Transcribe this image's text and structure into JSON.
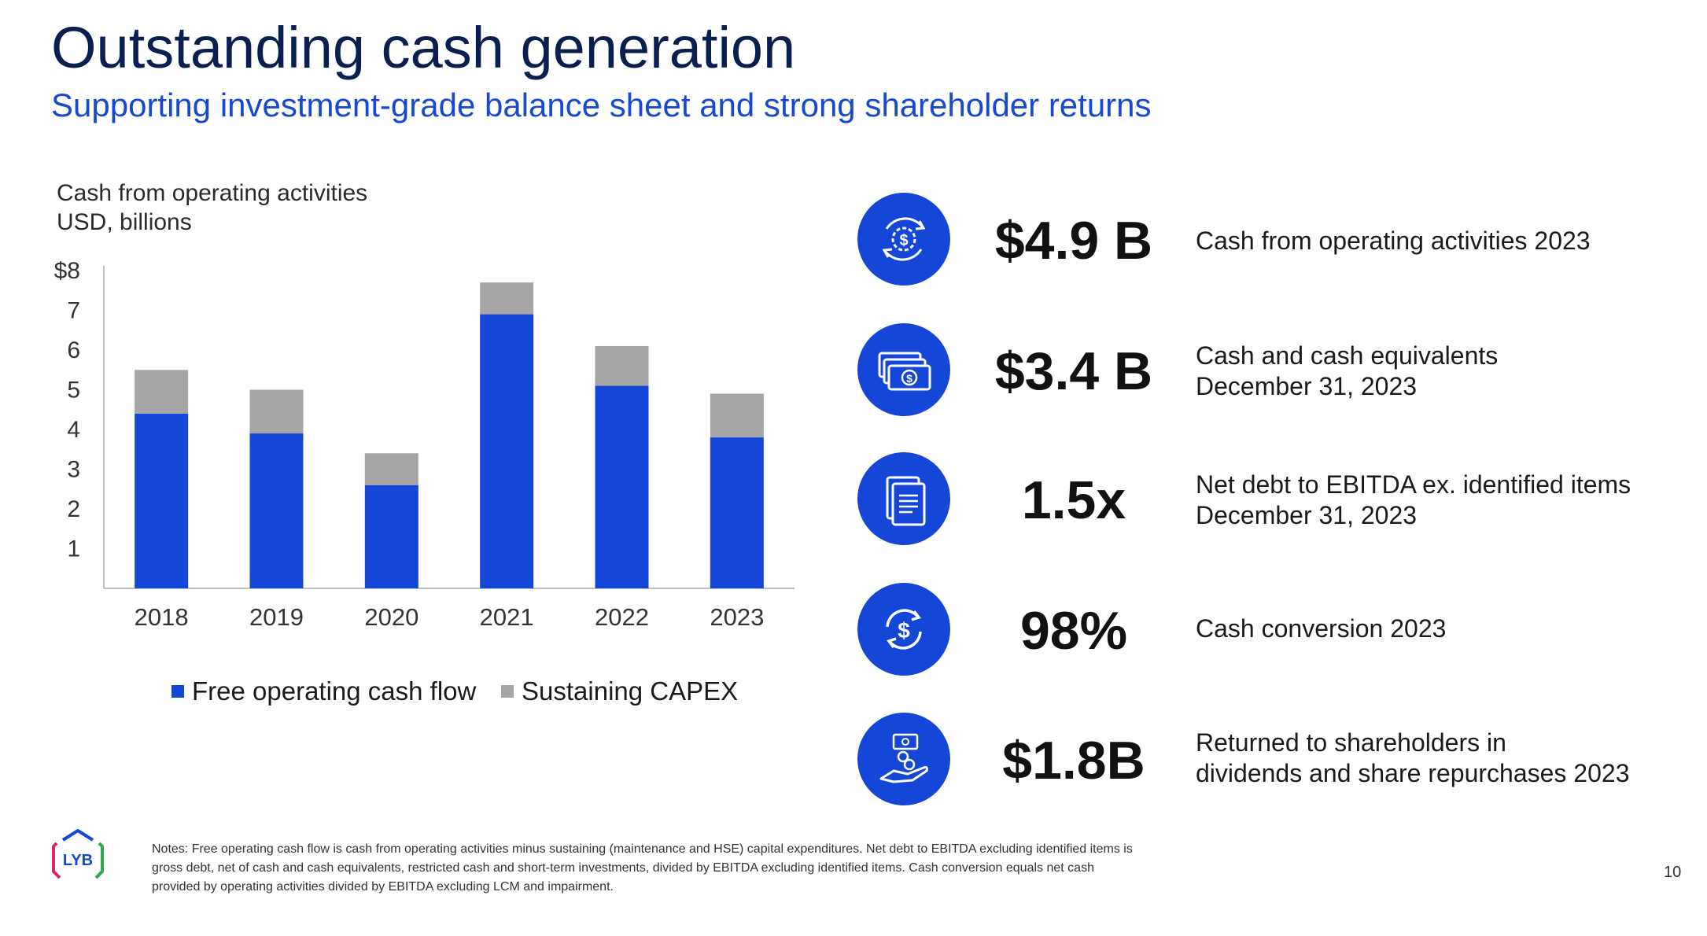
{
  "title": "Outstanding cash generation",
  "subtitle": "Supporting investment-grade balance sheet and strong shareholder returns",
  "chart_data": {
    "type": "bar",
    "stacked": true,
    "title_line1": "Cash from operating activities",
    "title_line2": "USD, billions",
    "categories": [
      "2018",
      "2019",
      "2020",
      "2021",
      "2022",
      "2023"
    ],
    "series": [
      {
        "name": "Free operating cash flow",
        "color": "#1447d8",
        "values": [
          4.4,
          3.9,
          2.6,
          6.9,
          5.1,
          3.8
        ]
      },
      {
        "name": "Sustaining CAPEX",
        "color": "#a6a6a6",
        "values": [
          1.1,
          1.1,
          0.8,
          0.8,
          1.0,
          1.1
        ]
      }
    ],
    "ylim": [
      0,
      8
    ],
    "y_tick_values": [
      1,
      2,
      3,
      4,
      5,
      6,
      7,
      8
    ],
    "y_tick_labels": [
      "1",
      "2",
      "3",
      "4",
      "5",
      "6",
      "7",
      "$8"
    ],
    "legend_position": "bottom"
  },
  "kpis": [
    {
      "icon": "money-cycle-icon",
      "value": "$4.9 B",
      "desc": [
        "Cash from operating activities 2023"
      ]
    },
    {
      "icon": "cash-stack-icon",
      "value": "$3.4 B",
      "desc": [
        "Cash and cash equivalents",
        "December 31, 2023"
      ]
    },
    {
      "icon": "document-icon",
      "value": "1.5x",
      "desc": [
        "Net debt to EBITDA ex. identified items",
        "December 31, 2023"
      ]
    },
    {
      "icon": "dollar-refresh-icon",
      "value": "98%",
      "desc": [
        "Cash conversion 2023"
      ]
    },
    {
      "icon": "hand-cash-icon",
      "value": "$1.8B",
      "desc": [
        "Returned to shareholders in",
        "dividends and share repurchases 2023"
      ]
    }
  ],
  "notes": "Notes: Free operating cash flow is cash from operating activities minus sustaining (maintenance and HSE) capital expenditures. Net debt to EBITDA excluding identified items is gross debt, net of cash and cash equivalents, restricted cash and short-term investments, divided by EBITDA excluding identified items. Cash conversion equals net cash provided by operating activities divided by EBITDA excluding LCM and impairment.",
  "logo_text": "LYB",
  "page_number": "10",
  "colors": {
    "title": "#0a1f4f",
    "accent": "#1748d4",
    "bar_blue": "#1447d8",
    "bar_gray": "#a6a6a6"
  }
}
